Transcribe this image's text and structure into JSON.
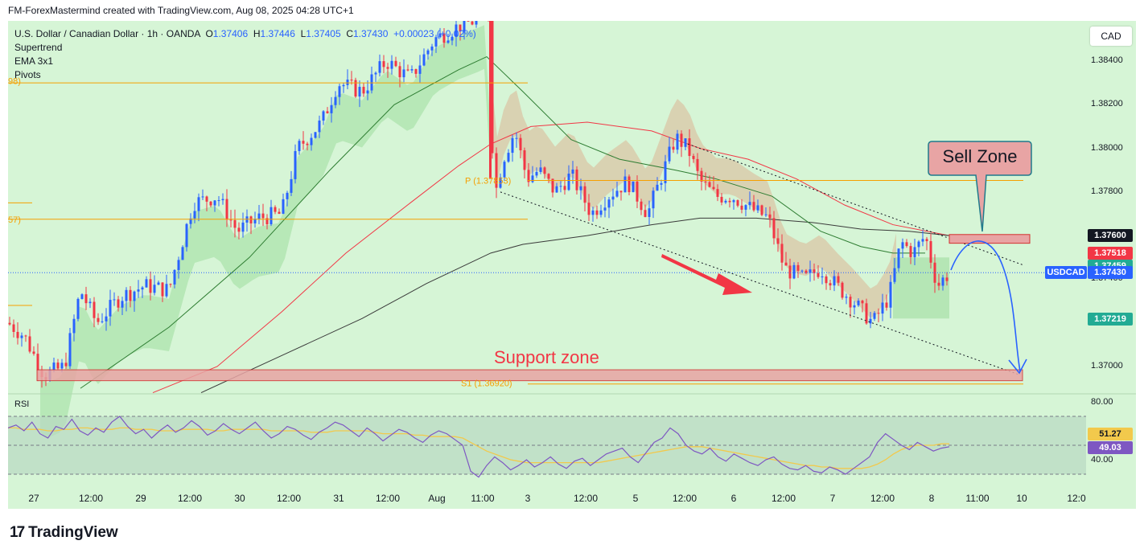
{
  "header": {
    "credit": "FM-ForexMastermind created with TradingView.com, Aug 08, 2025 04:28 UTC+1",
    "symbol": "U.S. Dollar / Canadian Dollar · 1h · OANDA",
    "o_label": "O",
    "o": "1.37406",
    "h_label": "H",
    "h": "1.37446",
    "l_label": "L",
    "l": "1.37405",
    "c_label": "C",
    "c": "1.37430",
    "change": "+0.00023 (+0.02%)",
    "indicators": [
      "Supertrend",
      "EMA 3x1",
      "Pivots"
    ]
  },
  "currency_button": "CAD",
  "brand": {
    "logo": "17",
    "name": "TradingView"
  },
  "colors": {
    "bg": "#d6f5d6",
    "up": "#2962ff",
    "down": "#f23645",
    "annotation": "#e8a4a4"
  },
  "chart_data": {
    "type": "candlestick",
    "y_ticks": [
      "1.38400",
      "1.38200",
      "1.38000",
      "1.37800",
      "1.37400",
      "1.37000"
    ],
    "x_ticks": [
      "27",
      "12:00",
      "29",
      "12:00",
      "30",
      "12:00",
      "31",
      "12:00",
      "Aug",
      "11:00",
      "3",
      "12:00",
      "5",
      "12:00",
      "6",
      "12:00",
      "7",
      "12:00",
      "8",
      "11:00",
      "10",
      "12:0"
    ],
    "ylim": [
      1.3688,
      1.3862
    ],
    "price_tags": [
      {
        "value": "1.37600",
        "color": "#131722"
      },
      {
        "value": "1.37518",
        "color": "#f23645"
      },
      {
        "value": "1.37459",
        "color": "#22ab94"
      },
      {
        "value": "1.37430",
        "color": "#2962ff",
        "symbol": "USDCAD"
      },
      {
        "value": "1.37219",
        "color": "#22ab94"
      }
    ],
    "pivots": [
      {
        "label": "P (1.37853)",
        "value": 1.37853
      },
      {
        "label": "S1 (1.36920)",
        "value": 1.3692
      }
    ],
    "pivot_edge_labels": [
      "98)",
      "57)"
    ],
    "annotations": {
      "sell_zone": "Sell Zone",
      "support_zone": "Support zone"
    },
    "rsi": {
      "label": "RSI",
      "ticks": [
        "80.00",
        "40.00"
      ],
      "ylim": [
        25,
        85
      ],
      "band": [
        70,
        30
      ],
      "values": {
        "rsi": "49.03",
        "ma": "51.27"
      },
      "rsi_series": [
        62,
        64,
        60,
        66,
        58,
        55,
        63,
        61,
        68,
        60,
        57,
        62,
        59,
        66,
        70,
        63,
        58,
        61,
        55,
        60,
        64,
        59,
        62,
        67,
        63,
        57,
        60,
        65,
        61,
        58,
        62,
        66,
        60,
        55,
        58,
        63,
        61,
        57,
        54,
        59,
        62,
        66,
        64,
        60,
        56,
        62,
        58,
        53,
        57,
        61,
        59,
        55,
        52,
        57,
        60,
        58,
        54,
        50,
        32,
        28,
        36,
        42,
        38,
        33,
        36,
        40,
        35,
        38,
        42,
        37,
        34,
        39,
        41,
        36,
        40,
        44,
        46,
        48,
        42,
        38,
        45,
        52,
        55,
        62,
        58,
        50,
        46,
        44,
        48,
        42,
        39,
        44,
        41,
        38,
        36,
        40,
        42,
        37,
        34,
        33,
        36,
        32,
        31,
        35,
        33,
        30,
        34,
        38,
        42,
        52,
        58,
        54,
        50,
        47,
        52,
        49,
        46,
        48,
        49
      ],
      "ma_series": [
        62,
        62,
        61,
        61,
        61,
        60,
        60,
        61,
        61,
        62,
        62,
        61,
        61,
        61,
        62,
        62,
        61,
        61,
        61,
        60,
        60,
        60,
        61,
        61,
        61,
        61,
        60,
        60,
        61,
        61,
        61,
        61,
        61,
        60,
        60,
        60,
        60,
        60,
        59,
        59,
        59,
        60,
        60,
        60,
        60,
        60,
        59,
        58,
        58,
        58,
        58,
        57,
        57,
        56,
        56,
        56,
        56,
        55,
        52,
        49,
        46,
        44,
        42,
        40,
        39,
        38,
        38,
        38,
        38,
        38,
        38,
        38,
        38,
        38,
        38,
        39,
        40,
        41,
        42,
        43,
        44,
        45,
        46,
        47,
        48,
        49,
        49,
        49,
        48,
        47,
        46,
        45,
        44,
        43,
        42,
        41,
        40,
        39,
        38,
        37,
        36,
        36,
        35,
        35,
        34,
        34,
        34,
        34,
        35,
        37,
        40,
        44,
        47,
        49,
        50,
        50,
        50,
        51,
        51
      ]
    }
  }
}
